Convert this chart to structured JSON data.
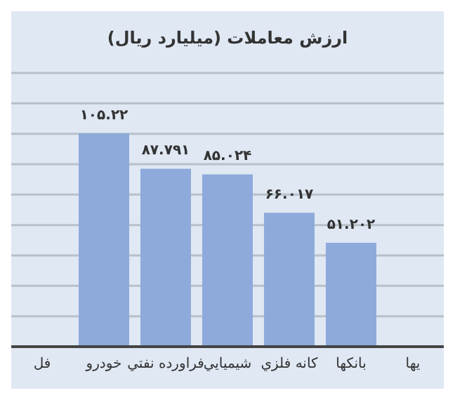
{
  "chart_data": {
    "type": "bar",
    "title": "ارزش معاملات  (میلیارد ریال)",
    "categories": [
      "فل",
      "خودرو",
      "فراورده نفتي",
      "شيميايي",
      "كانه فلزي",
      "بانكها",
      "یها"
    ],
    "values": [
      null,
      105.22,
      87.791,
      85.024,
      66.017,
      51.202,
      null
    ],
    "value_labels": [
      null,
      "۱۰۵.۲۲",
      "۸۷.۷۹۱",
      "۸۵.۰۲۴",
      "۶۶.۰۱۷",
      "۵۱.۲۰۲",
      null
    ],
    "color": "#8eaadb",
    "grid": "y",
    "tick_labels": "x"
  }
}
